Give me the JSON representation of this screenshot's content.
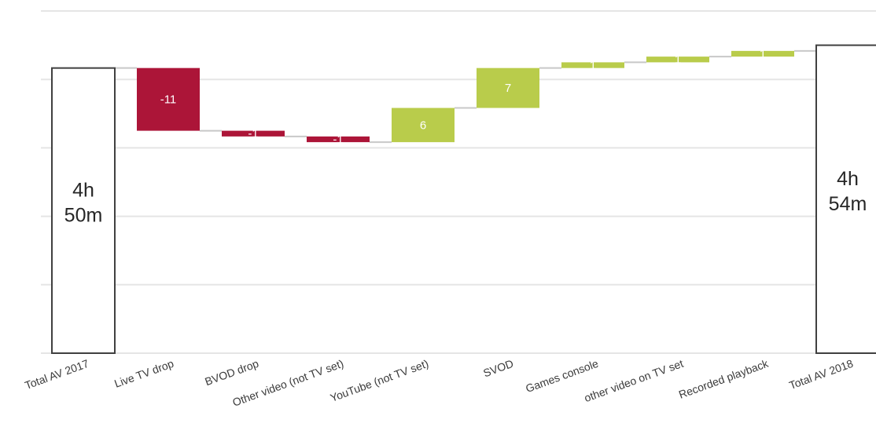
{
  "chart_data": {
    "type": "waterfall",
    "title": "",
    "xlabel": "",
    "ylabel": "",
    "ylim": [
      240,
      300
    ],
    "grid": true,
    "legend": "none",
    "colors": {
      "decrease": "#ac1538",
      "increase": "#b9cc4b",
      "total_fill": "#ffffff",
      "total_stroke": "#404040"
    },
    "steps": [
      {
        "label": "Total AV 2017",
        "kind": "total",
        "value": 290,
        "display": [
          "4h",
          "50m"
        ]
      },
      {
        "label": "Live TV drop",
        "kind": "delta",
        "value": -11,
        "display": "-11"
      },
      {
        "label": "BVOD drop",
        "kind": "delta",
        "value": -1,
        "display": "-1"
      },
      {
        "label": "Other video (not TV set)",
        "kind": "delta",
        "value": -1,
        "display": "-1"
      },
      {
        "label": "YouTube (not TV set)",
        "kind": "delta",
        "value": 6,
        "display": "6"
      },
      {
        "label": "SVOD",
        "kind": "delta",
        "value": 7,
        "display": "7"
      },
      {
        "label": "Games console",
        "kind": "delta",
        "value": 1,
        "display": "1"
      },
      {
        "label": "other video on TV set",
        "kind": "delta",
        "value": 1,
        "display": "1"
      },
      {
        "label": "Recorded playback",
        "kind": "delta",
        "value": 1,
        "display": "1"
      },
      {
        "label": "Total AV 2018",
        "kind": "total",
        "value": 294,
        "display": [
          "4h",
          "54m"
        ]
      }
    ]
  }
}
